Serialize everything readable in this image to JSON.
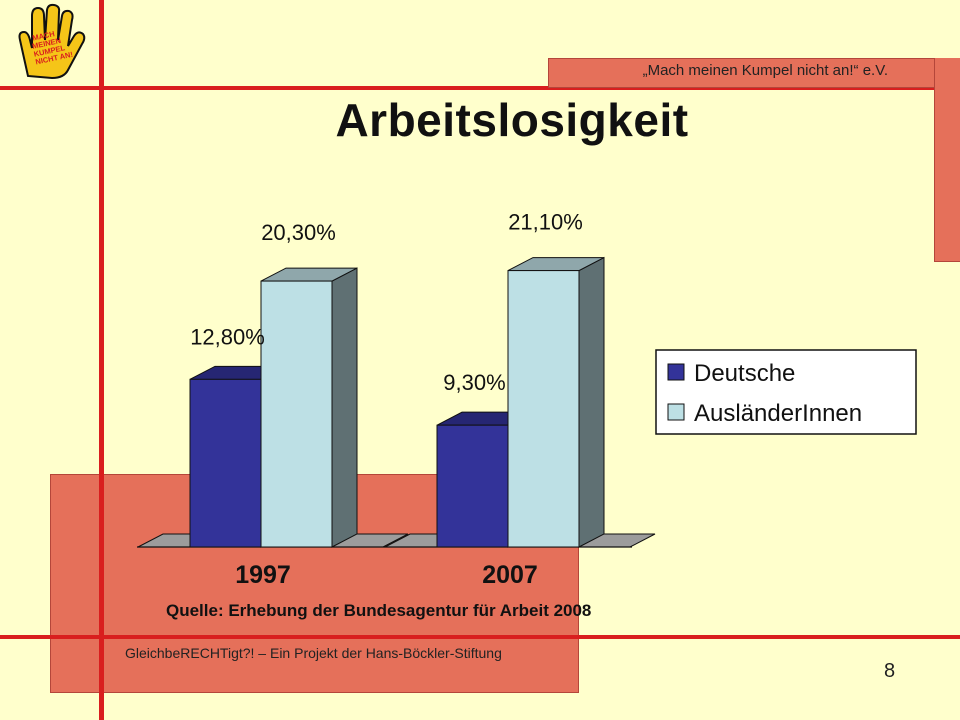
{
  "header": {
    "org_label": "„Mach meinen Kumpel nicht an!“ e.V."
  },
  "title": "Arbeitslosigkeit",
  "logo": {
    "text": [
      "MACH",
      "MEINEN",
      "KUMPEL",
      "NICHT AN!"
    ]
  },
  "footer": {
    "project_text": "GleichbeRECHTigt?! – Ein Projekt der Hans-Böckler-Stiftung",
    "page_number": "8"
  },
  "source": "Quelle: Erhebung der Bundesagentur für Arbeit 2008",
  "colors": {
    "background": "#FFFFCC",
    "accent_red": "#D91E1E",
    "box_salmon": "#E5705A",
    "deutsche": "#333399",
    "auslaender": "#BDE0E5"
  },
  "chart_data": {
    "type": "bar",
    "categories": [
      "1997",
      "2007"
    ],
    "series": [
      {
        "name": "Deutsche",
        "values": [
          12.8,
          9.3
        ],
        "labels": [
          "12,80%",
          "9,30%"
        ],
        "color": "#333399"
      },
      {
        "name": "AusländerInnen",
        "values": [
          20.3,
          21.1
        ],
        "labels": [
          "20,30%",
          "21,10%"
        ],
        "color": "#BDE0E5"
      }
    ],
    "ylim": [
      0,
      25
    ],
    "grid": false,
    "legend_position": "right",
    "three_d": true
  }
}
